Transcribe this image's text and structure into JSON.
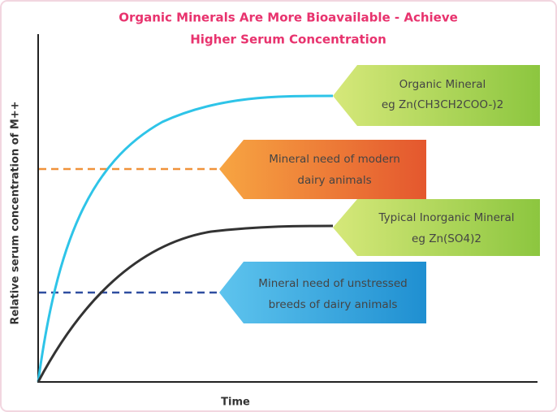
{
  "title": [
    "Organic Minerals Are More Bioavailable -  Achieve",
    "Higher Serum Concentration"
  ],
  "y_axis_label": "Relative serum concentration of M++",
  "x_axis_label": "Time",
  "callouts": [
    {
      "lines": [
        "Organic Mineral",
        "eg Zn(CH3CH2COO-)2"
      ]
    },
    {
      "lines": [
        "Mineral need of modern",
        "dairy animals"
      ]
    },
    {
      "lines": [
        "Typical Inorganic Mineral",
        "eg Zn(SO4)2"
      ]
    },
    {
      "lines": [
        "Mineral need of unstressed",
        "breeds of dairy animals"
      ]
    }
  ]
}
